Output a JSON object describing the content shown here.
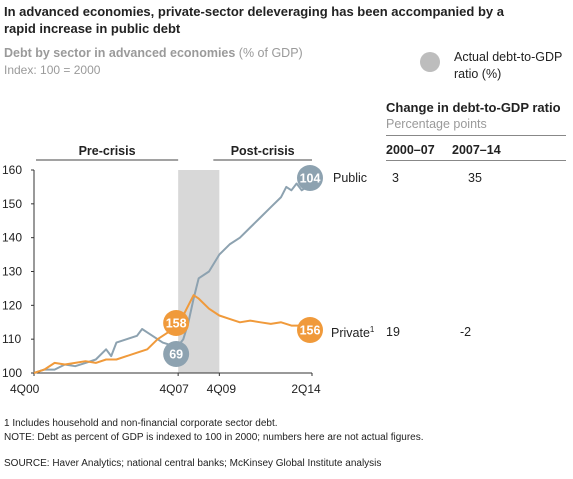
{
  "title": "In advanced economies, private-sector deleveraging has been accompanied by a rapid increase in public debt",
  "subtitle_bold": "Debt by sector in advanced economies",
  "subtitle_rest": " (% of GDP)",
  "index_note": "Index: 100 = 2000",
  "legend": {
    "label": "Actual debt-to-GDP ratio (%)",
    "color": "#bdbdbd"
  },
  "table": {
    "title": "Change in debt-to-GDP ratio",
    "units": "Percentage points",
    "columns": [
      "2000–07",
      "2007–14"
    ],
    "rows": [
      {
        "series": "Public",
        "values": [
          "3",
          "35"
        ]
      },
      {
        "series": "Private",
        "sup": "1",
        "values": [
          "19",
          "-2"
        ]
      }
    ]
  },
  "period_labels": {
    "pre": "Pre-crisis",
    "post": "Post-crisis"
  },
  "colors": {
    "public": "#8da2b0",
    "private": "#f09a3b",
    "shade": "#d8d8d8"
  },
  "chart_data": {
    "type": "line",
    "ylim": [
      100,
      160
    ],
    "yticks": [
      100,
      110,
      120,
      130,
      140,
      150,
      160
    ],
    "xlim": [
      2000.75,
      2014.25
    ],
    "xticks": [
      {
        "x": 2000.75,
        "label": "4Q00"
      },
      {
        "x": 2007.75,
        "label": "4Q07"
      },
      {
        "x": 2009.75,
        "label": "4Q09"
      },
      {
        "x": 2014.25,
        "label": "2Q14"
      }
    ],
    "shaded_range": [
      2007.75,
      2009.75
    ],
    "series": [
      {
        "name": "Public",
        "points": [
          [
            2000.75,
            100
          ],
          [
            2001.25,
            101
          ],
          [
            2001.75,
            101
          ],
          [
            2002.25,
            102.5
          ],
          [
            2002.75,
            102
          ],
          [
            2003.25,
            103
          ],
          [
            2003.75,
            104
          ],
          [
            2004.25,
            107
          ],
          [
            2004.5,
            105
          ],
          [
            2004.75,
            109
          ],
          [
            2005.25,
            110
          ],
          [
            2005.75,
            111
          ],
          [
            2006.0,
            113
          ],
          [
            2006.25,
            112
          ],
          [
            2006.75,
            110
          ],
          [
            2007.0,
            109
          ],
          [
            2007.25,
            108.5
          ],
          [
            2007.75,
            108
          ],
          [
            2008.0,
            110
          ],
          [
            2008.25,
            115
          ],
          [
            2008.5,
            122
          ],
          [
            2008.75,
            128
          ],
          [
            2009.25,
            130
          ],
          [
            2009.75,
            135
          ],
          [
            2010.25,
            138
          ],
          [
            2010.75,
            140
          ],
          [
            2011.25,
            143
          ],
          [
            2011.75,
            146
          ],
          [
            2012.25,
            149
          ],
          [
            2012.75,
            152
          ],
          [
            2013.0,
            155
          ],
          [
            2013.25,
            154
          ],
          [
            2013.5,
            156
          ],
          [
            2013.75,
            154
          ],
          [
            2014.0,
            155
          ],
          [
            2014.25,
            155
          ]
        ],
        "start_value": 69,
        "end_value": 104
      },
      {
        "name": "Private",
        "points": [
          [
            2000.75,
            100
          ],
          [
            2001.25,
            101
          ],
          [
            2001.75,
            103
          ],
          [
            2002.25,
            102.5
          ],
          [
            2002.75,
            103
          ],
          [
            2003.25,
            103.5
          ],
          [
            2003.75,
            103
          ],
          [
            2004.25,
            104
          ],
          [
            2004.75,
            104
          ],
          [
            2005.25,
            105
          ],
          [
            2005.75,
            106
          ],
          [
            2006.25,
            107
          ],
          [
            2006.75,
            110
          ],
          [
            2007.25,
            112
          ],
          [
            2007.75,
            114
          ],
          [
            2008.25,
            120
          ],
          [
            2008.5,
            123
          ],
          [
            2008.75,
            122
          ],
          [
            2009.25,
            119
          ],
          [
            2009.75,
            117
          ],
          [
            2010.25,
            116
          ],
          [
            2010.75,
            115
          ],
          [
            2011.25,
            115.5
          ],
          [
            2011.75,
            115
          ],
          [
            2012.25,
            114.5
          ],
          [
            2012.75,
            115
          ],
          [
            2013.25,
            114
          ],
          [
            2013.75,
            114
          ],
          [
            2014.25,
            113
          ]
        ],
        "start_value": 158,
        "end_value": 156
      }
    ]
  },
  "footnote1": "1 Includes household and non-financial corporate sector debt.",
  "footnote2": "NOTE: Debt as percent of GDP is indexed to 100 in 2000; numbers here are not actual figures.",
  "source": "SOURCE:  Haver Analytics; national central banks; McKinsey Global Institute analysis"
}
